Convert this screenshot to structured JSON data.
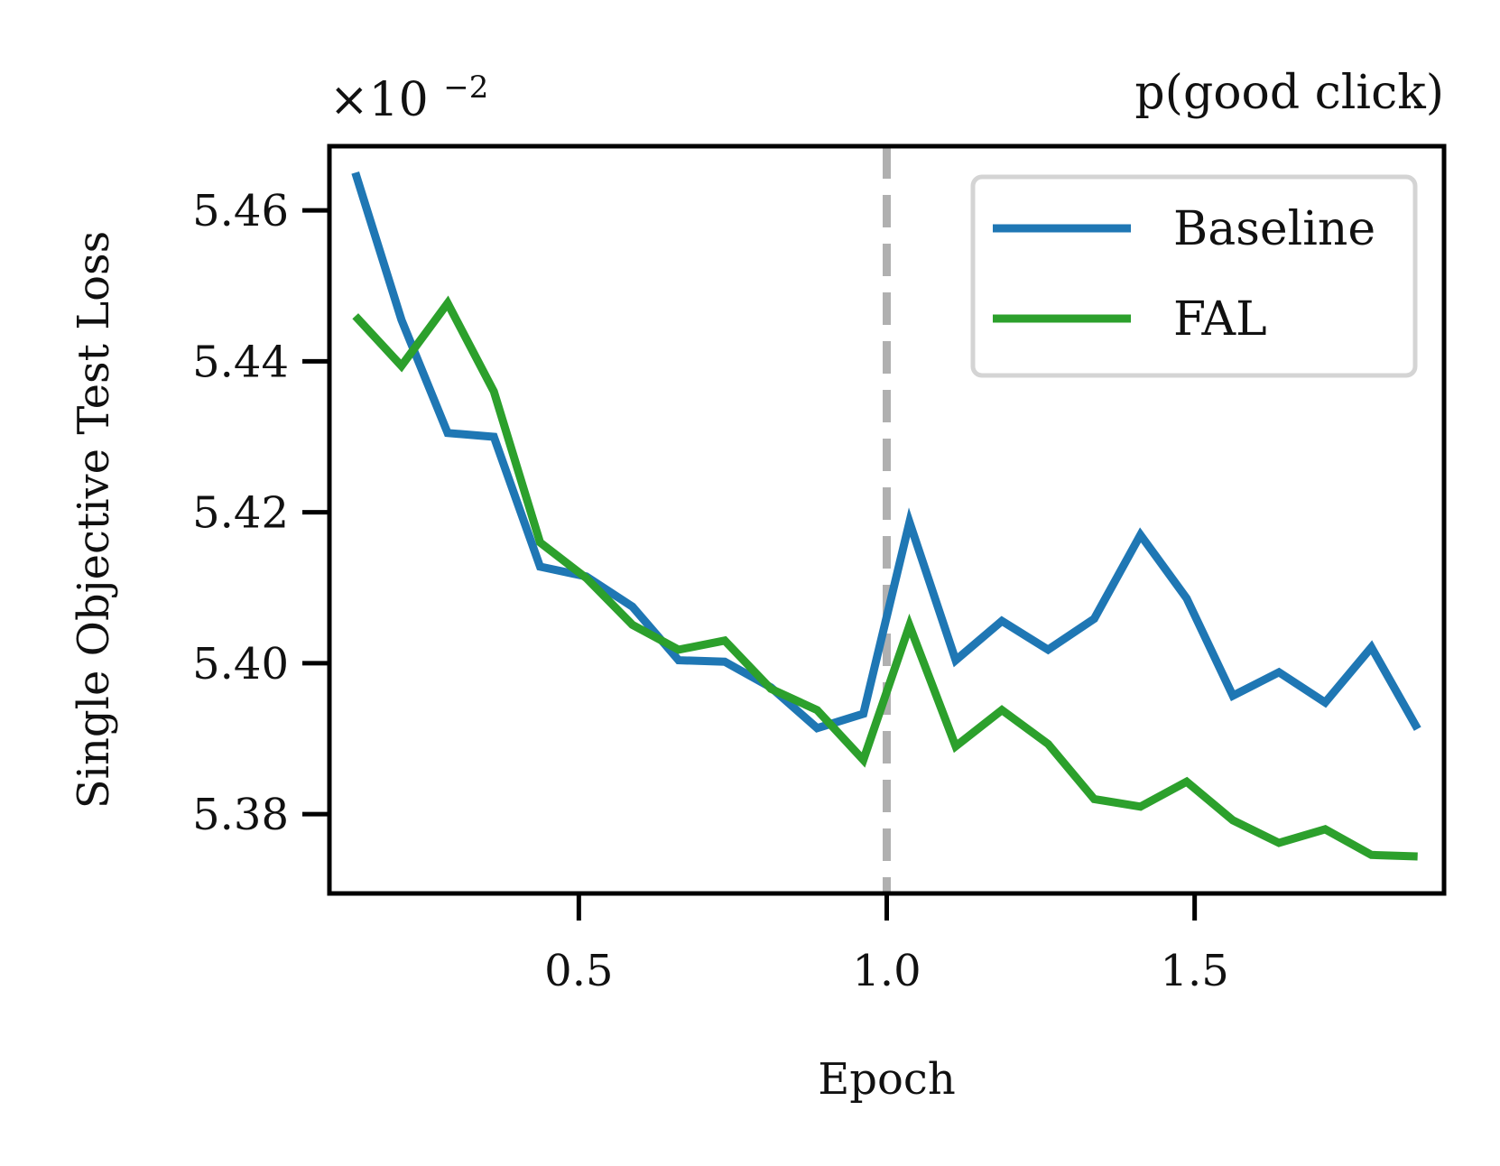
{
  "chart_data": {
    "type": "line",
    "title": "p(good click)",
    "xlabel": "Epoch",
    "ylabel": "Single Objective Test Loss",
    "offset_text": {
      "base": "×10",
      "exponent": "−2"
    },
    "xlim": [
      0.095,
      1.905
    ],
    "ylim": [
      5.3695,
      5.4685
    ],
    "x_ticks": [
      {
        "value": 0.5,
        "label": "0.5"
      },
      {
        "value": 1.0,
        "label": "1.0"
      },
      {
        "value": 1.5,
        "label": "1.5"
      }
    ],
    "y_ticks": [
      {
        "value": 5.38,
        "label": "5.38"
      },
      {
        "value": 5.4,
        "label": "5.40"
      },
      {
        "value": 5.42,
        "label": "5.42"
      },
      {
        "value": 5.44,
        "label": "5.44"
      },
      {
        "value": 5.46,
        "label": "5.46"
      }
    ],
    "vline": {
      "x": 1.0,
      "color": "#b0b0b0",
      "style": "dashed"
    },
    "legend_position": "upper right",
    "grid": false,
    "series": [
      {
        "name": "Baseline",
        "color": "#1f77b4",
        "x": [
          0.137,
          0.212,
          0.287,
          0.362,
          0.437,
          0.512,
          0.587,
          0.662,
          0.737,
          0.812,
          0.887,
          0.962,
          1.037,
          1.112,
          1.187,
          1.262,
          1.337,
          1.412,
          1.487,
          1.562,
          1.637,
          1.712,
          1.787,
          1.862
        ],
        "y": [
          5.465,
          5.4455,
          5.4305,
          5.43,
          5.4128,
          5.4115,
          5.4075,
          5.4004,
          5.4002,
          5.3968,
          5.3914,
          5.3933,
          5.4187,
          5.4004,
          5.4056,
          5.4018,
          5.4059,
          5.417,
          5.4086,
          5.3957,
          5.3988,
          5.3948,
          5.4021,
          5.3913
        ]
      },
      {
        "name": "FAL",
        "color": "#2ca02c",
        "x": [
          0.137,
          0.212,
          0.287,
          0.362,
          0.437,
          0.512,
          0.587,
          0.662,
          0.737,
          0.812,
          0.887,
          0.962,
          1.037,
          1.112,
          1.187,
          1.262,
          1.337,
          1.412,
          1.487,
          1.562,
          1.637,
          1.712,
          1.787,
          1.862
        ],
        "y": [
          5.446,
          5.4394,
          5.4477,
          5.436,
          5.416,
          5.4113,
          5.4051,
          5.4018,
          5.403,
          5.3966,
          5.3938,
          5.3872,
          5.405,
          5.389,
          5.3938,
          5.3893,
          5.382,
          5.381,
          5.3843,
          5.3792,
          5.3762,
          5.378,
          5.3746,
          5.3744
        ]
      }
    ]
  }
}
